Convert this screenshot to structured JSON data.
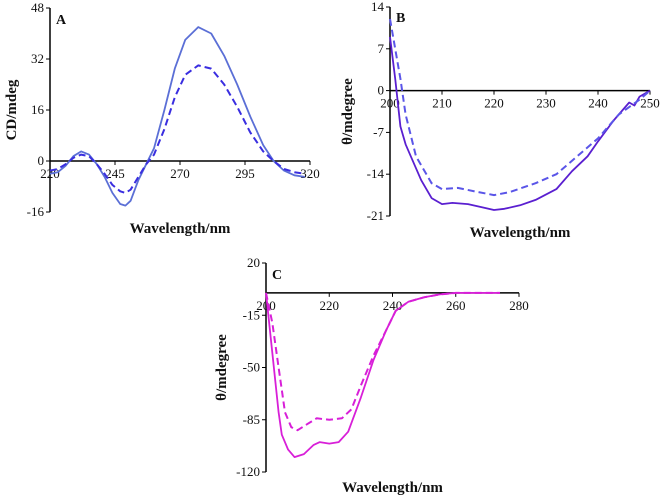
{
  "chart_data": [
    {
      "type": "line",
      "panel_label": "A",
      "xlabel": "Wavelength/nm",
      "ylabel": "CD/mdeg",
      "xlim": [
        220,
        320
      ],
      "ylim": [
        -16,
        48
      ],
      "xticks": [
        220,
        245,
        270,
        295,
        320
      ],
      "yticks": [
        -16,
        0,
        16,
        32,
        48
      ],
      "series": [
        {
          "style": "solid",
          "color": "#5b6fd6",
          "x": [
            220,
            223,
            226,
            229,
            232,
            235,
            238,
            241,
            244,
            247,
            249,
            251,
            254,
            257,
            260,
            264,
            268,
            272,
            277,
            282,
            287,
            292,
            297,
            302,
            306,
            310,
            314,
            318
          ],
          "y": [
            -4,
            -3.5,
            -1.5,
            1.5,
            3,
            2,
            -1,
            -5,
            -10,
            -13.5,
            -14,
            -12.5,
            -6,
            -1,
            4,
            16,
            29,
            38,
            42,
            40,
            33,
            24,
            14,
            5,
            0,
            -3,
            -4.5,
            -5
          ]
        },
        {
          "style": "dashed",
          "color": "#3a2ee0",
          "x": [
            220,
            223,
            226,
            229,
            232,
            235,
            238,
            241,
            244,
            247,
            249,
            251,
            254,
            257,
            260,
            264,
            268,
            272,
            277,
            282,
            287,
            292,
            297,
            302,
            306,
            310,
            314,
            318
          ],
          "y": [
            -3,
            -2.5,
            -1,
            1,
            2,
            1.5,
            -1,
            -4,
            -7.5,
            -9.5,
            -10,
            -9,
            -5,
            -1,
            2,
            10,
            20,
            27,
            30,
            29,
            24,
            17,
            9,
            3,
            0,
            -2.5,
            -3.5,
            -4
          ]
        }
      ]
    },
    {
      "type": "line",
      "panel_label": "B",
      "xlabel": "Wavelength/nm",
      "ylabel": "θ/mdegree",
      "xlim": [
        200,
        250
      ],
      "ylim": [
        -21,
        14
      ],
      "xticks": [
        200,
        210,
        220,
        230,
        240,
        250
      ],
      "yticks": [
        -21,
        -14,
        -7,
        0,
        7,
        14
      ],
      "series": [
        {
          "style": "solid",
          "color": "#5a1fd0",
          "x": [
            200,
            201,
            202,
            203,
            204,
            206,
            208,
            210,
            212,
            215,
            218,
            220,
            222,
            225,
            228,
            232,
            235,
            238,
            240,
            243,
            246,
            247,
            248,
            250
          ],
          "y": [
            9,
            2,
            -6,
            -9,
            -11,
            -15,
            -18,
            -19,
            -18.8,
            -19,
            -19.6,
            -20,
            -19.8,
            -19.2,
            -18.3,
            -16.5,
            -13.5,
            -11,
            -8.5,
            -5,
            -2,
            -2.5,
            -1,
            0
          ]
        },
        {
          "style": "dashed",
          "color": "#5a55e8",
          "x": [
            200,
            201,
            202,
            203,
            205,
            208,
            210,
            213,
            217,
            220,
            223,
            228,
            232,
            236,
            240,
            244,
            248,
            250
          ],
          "y": [
            12,
            7,
            2,
            -4,
            -11,
            -15.5,
            -16.5,
            -16.3,
            -17,
            -17.5,
            -17,
            -15.5,
            -14,
            -11,
            -8,
            -4,
            -1.5,
            0
          ]
        }
      ]
    },
    {
      "type": "line",
      "panel_label": "C",
      "xlabel": "Wavelength/nm",
      "ylabel": "θ/mdegree",
      "xlim": [
        200,
        280
      ],
      "ylim": [
        -120,
        20
      ],
      "xticks": [
        200,
        220,
        240,
        260,
        280
      ],
      "yticks": [
        -120,
        -85,
        -50,
        -15,
        20
      ],
      "series": [
        {
          "style": "solid",
          "color": "#d81fd8",
          "x": [
            200,
            202,
            204,
            205,
            207,
            209,
            212,
            215,
            217,
            220,
            223,
            226,
            230,
            234,
            238,
            241,
            245,
            250,
            255,
            260,
            274
          ],
          "y": [
            0,
            -40,
            -80,
            -95,
            -105,
            -110,
            -108,
            -102,
            -100,
            -101,
            -100,
            -93,
            -70,
            -45,
            -25,
            -12,
            -6,
            -3,
            -1,
            0,
            0
          ]
        },
        {
          "style": "dashed",
          "color": "#d81fd8",
          "x": [
            200,
            202,
            204,
            206,
            208,
            210,
            213,
            216,
            220,
            224,
            227,
            230,
            234,
            238,
            241,
            245,
            250,
            255,
            260,
            274
          ],
          "y": [
            0,
            -20,
            -50,
            -80,
            -90,
            -92,
            -88,
            -84,
            -85,
            -84,
            -78,
            -62,
            -42,
            -25,
            -12,
            -6,
            -3,
            -1,
            0,
            0
          ]
        }
      ]
    }
  ]
}
